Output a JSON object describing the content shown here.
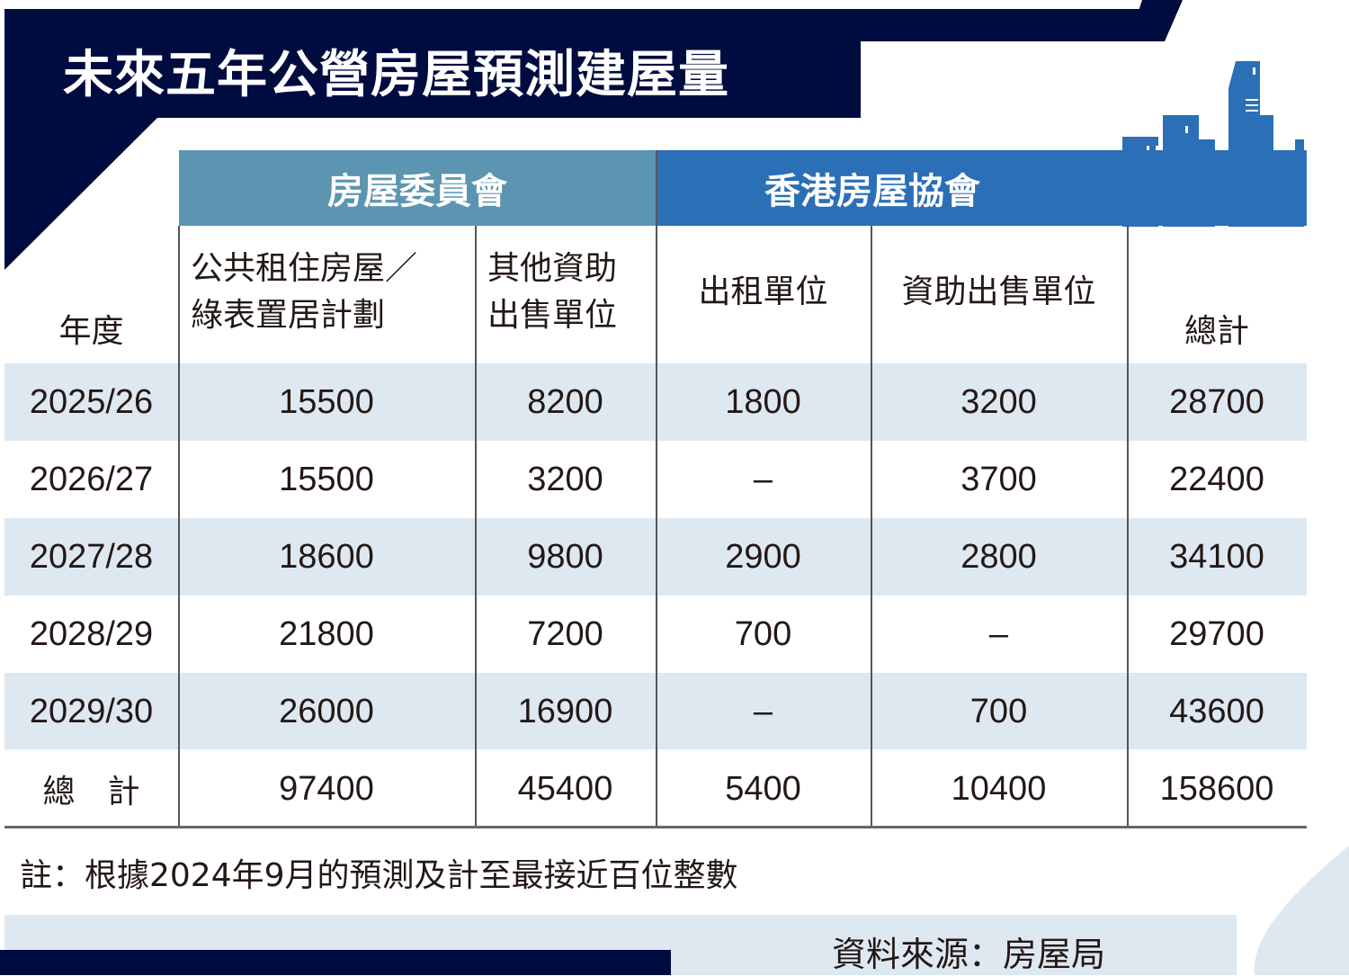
{
  "title": "未來五年公營房屋預測建屋量",
  "colors": {
    "navy": "#000c40",
    "group_housing_authority": "#5b95b1",
    "group_housing_society": "#2b6fb7",
    "row_shade": "#dde8f1"
  },
  "chart_data": {
    "type": "table",
    "column_groups": [
      "房屋委員會",
      "香港房屋協會"
    ],
    "columns": [
      "年度",
      "公共租住房屋／綠表置居計劃",
      "其他資助出售單位",
      "出租單位",
      "資助出售單位",
      "總計"
    ],
    "column_lines": [
      [
        "年度"
      ],
      [
        "公共租住房屋／",
        "綠表置居計劃"
      ],
      [
        "其他資助",
        "出售單位"
      ],
      [
        "出租單位"
      ],
      [
        "資助出售單位"
      ],
      [
        "總計"
      ]
    ],
    "rows": [
      [
        "2025/26",
        "15500",
        "8200",
        "1800",
        "3200",
        "28700"
      ],
      [
        "2026/27",
        "15500",
        "3200",
        "–",
        "3700",
        "22400"
      ],
      [
        "2027/28",
        "18600",
        "9800",
        "2900",
        "2800",
        "34100"
      ],
      [
        "2028/29",
        "21800",
        "7200",
        "700",
        "–",
        "29700"
      ],
      [
        "2029/30",
        "26000",
        "16900",
        "–",
        "700",
        "43600"
      ],
      [
        "總　計",
        "97400",
        "45400",
        "5400",
        "10400",
        "158600"
      ]
    ]
  },
  "note": "註：根據2024年9月的預測及計至最接近百位整數",
  "source": "資料來源：房屋局"
}
